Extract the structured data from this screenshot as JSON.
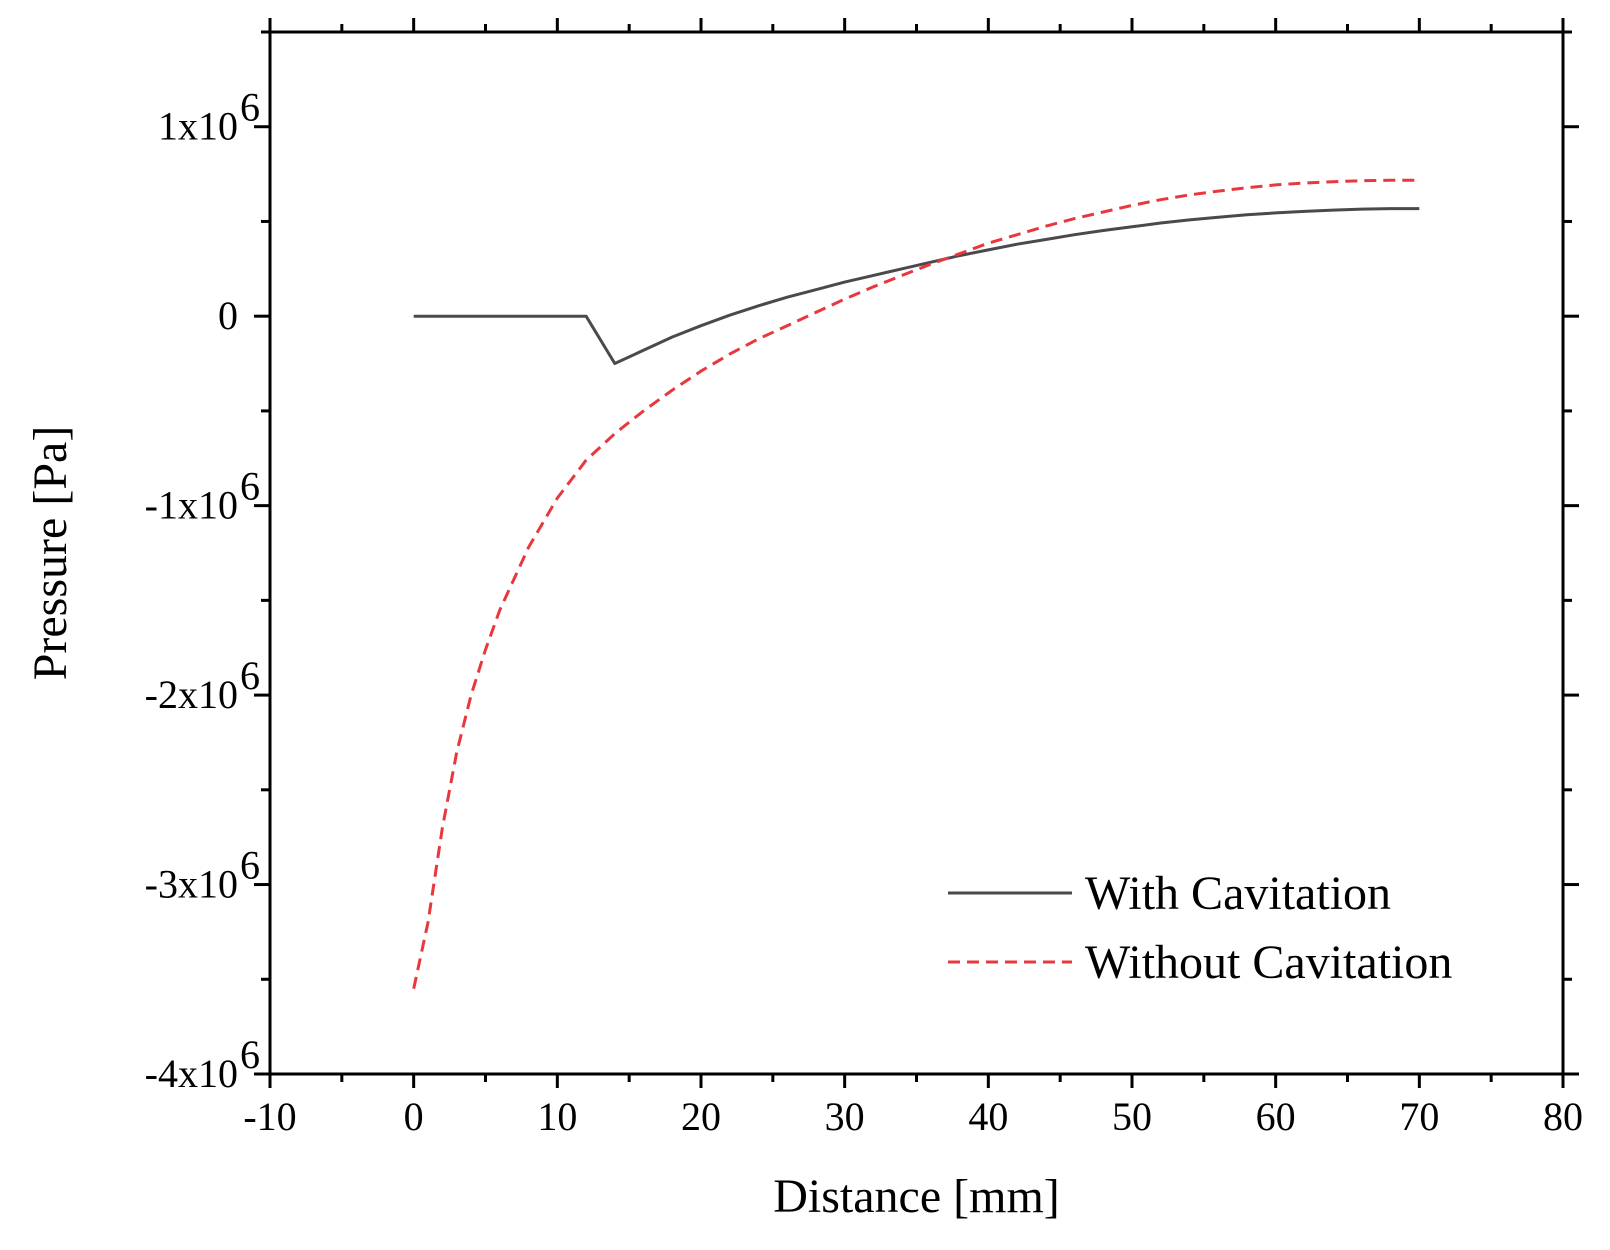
{
  "chart_data": {
    "type": "line",
    "title": "",
    "xlabel": "Distance [mm]",
    "ylabel": "Pressure [Pa]",
    "xlim": [
      -10,
      80
    ],
    "ylim": [
      -4000000,
      1500000
    ],
    "x_ticks": [
      -10,
      0,
      10,
      20,
      30,
      40,
      50,
      60,
      70,
      80
    ],
    "x_tick_labels": [
      "-10",
      "0",
      "10",
      "20",
      "30",
      "40",
      "50",
      "60",
      "70",
      "80"
    ],
    "y_ticks": [
      {
        "value": 1000000,
        "label": "1x10",
        "exp": "6"
      },
      {
        "value": 0,
        "label": "0",
        "exp": ""
      },
      {
        "value": -1000000,
        "label": "-1x10",
        "exp": "6"
      },
      {
        "value": -2000000,
        "label": "-2x10",
        "exp": "6"
      },
      {
        "value": -3000000,
        "label": "-3x10",
        "exp": "6"
      },
      {
        "value": -4000000,
        "label": "-4x10",
        "exp": "6"
      }
    ],
    "grid": false,
    "legend_position": "bottom-right",
    "series": [
      {
        "name": "With Cavitation",
        "color": "#4a4a4a",
        "dash": "solid",
        "x": [
          0,
          12,
          14,
          16,
          18,
          20,
          22,
          24,
          26,
          28,
          30,
          32,
          34,
          36,
          38,
          40,
          42,
          44,
          46,
          48,
          50,
          52,
          54,
          56,
          58,
          60,
          62,
          64,
          66,
          68,
          70
        ],
        "y": [
          0,
          0,
          -250000,
          -180000,
          -110000,
          -50000,
          5000,
          55000,
          100000,
          140000,
          180000,
          215000,
          250000,
          285000,
          320000,
          350000,
          380000,
          405000,
          430000,
          452000,
          472000,
          492000,
          508000,
          522000,
          535000,
          545000,
          553000,
          560000,
          565000,
          568000,
          568000
        ]
      },
      {
        "name": "Without Cavitation",
        "color": "#e8383d",
        "dash": "dashed",
        "x": [
          0,
          1,
          2,
          3,
          4,
          5,
          6,
          8,
          10,
          12,
          14,
          16,
          18,
          20,
          22,
          24,
          26,
          28,
          30,
          32,
          34,
          36,
          38,
          40,
          42,
          44,
          46,
          48,
          50,
          52,
          54,
          56,
          58,
          60,
          62,
          64,
          66,
          68,
          70
        ],
        "y": [
          -3550000,
          -3200000,
          -2700000,
          -2300000,
          -2000000,
          -1760000,
          -1550000,
          -1220000,
          -960000,
          -760000,
          -620000,
          -500000,
          -390000,
          -290000,
          -200000,
          -120000,
          -50000,
          20000,
          90000,
          155000,
          215000,
          275000,
          330000,
          385000,
          430000,
          475000,
          515000,
          550000,
          585000,
          615000,
          640000,
          660000,
          678000,
          693000,
          703000,
          710000,
          715000,
          718000,
          718000
        ]
      }
    ]
  }
}
